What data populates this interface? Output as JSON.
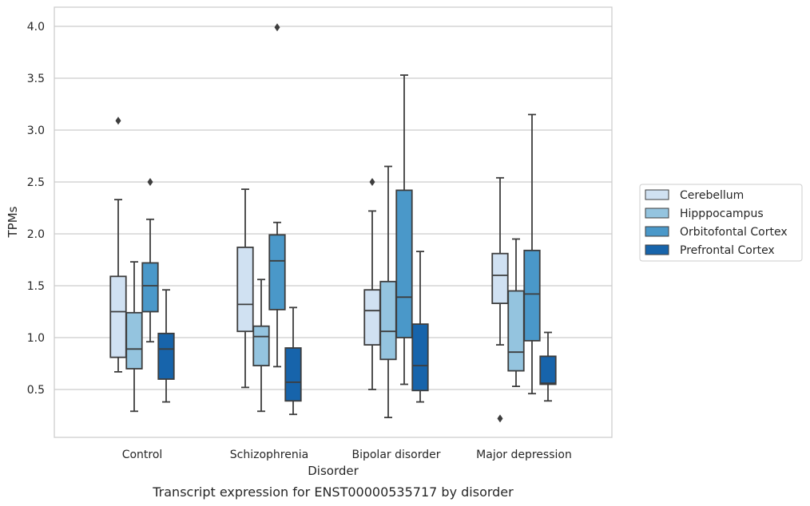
{
  "chart_data": {
    "type": "box",
    "caption": "Transcript expression for ENST00000535717 by disorder",
    "xlabel": "Disorder",
    "ylabel": "TPMs",
    "ylim": [
      0.03,
      4.2
    ],
    "yticks": [
      "0.5",
      "1.0",
      "1.5",
      "2.0",
      "2.5",
      "3.0",
      "3.5",
      "4.0"
    ],
    "grid": "horizontal",
    "legend_position": "right",
    "categories": [
      "Control",
      "Schizophrenia",
      "Bipolar disorder",
      "Major depression"
    ],
    "series": [
      {
        "name": "Cerebellum",
        "color": "#d0e1f2",
        "boxes": [
          {
            "whisker_low": 0.67,
            "q1": 0.81,
            "median": 1.25,
            "q3": 1.59,
            "whisker_high": 2.33,
            "outliers": [
              3.09
            ]
          },
          {
            "whisker_low": 0.52,
            "q1": 1.06,
            "median": 1.32,
            "q3": 1.87,
            "whisker_high": 2.43,
            "outliers": []
          },
          {
            "whisker_low": 0.5,
            "q1": 0.93,
            "median": 1.26,
            "q3": 1.46,
            "whisker_high": 2.22,
            "outliers": [
              2.5
            ]
          },
          {
            "whisker_low": 0.93,
            "q1": 1.33,
            "median": 1.6,
            "q3": 1.81,
            "whisker_high": 2.54,
            "outliers": [
              0.22
            ]
          }
        ]
      },
      {
        "name": "Hipppocampus",
        "color": "#94c4df",
        "boxes": [
          {
            "whisker_low": 0.29,
            "q1": 0.7,
            "median": 0.89,
            "q3": 1.24,
            "whisker_high": 1.73,
            "outliers": []
          },
          {
            "whisker_low": 0.29,
            "q1": 0.73,
            "median": 1.01,
            "q3": 1.11,
            "whisker_high": 1.56,
            "outliers": []
          },
          {
            "whisker_low": 0.23,
            "q1": 0.79,
            "median": 1.06,
            "q3": 1.54,
            "whisker_high": 2.65,
            "outliers": []
          },
          {
            "whisker_low": 0.53,
            "q1": 0.68,
            "median": 0.86,
            "q3": 1.45,
            "whisker_high": 1.95,
            "outliers": []
          }
        ]
      },
      {
        "name": "Orbitofontal Cortex",
        "color": "#4a98c9",
        "boxes": [
          {
            "whisker_low": 0.96,
            "q1": 1.25,
            "median": 1.5,
            "q3": 1.72,
            "whisker_high": 2.14,
            "outliers": [
              2.5
            ]
          },
          {
            "whisker_low": 0.72,
            "q1": 1.27,
            "median": 1.74,
            "q3": 1.99,
            "whisker_high": 2.11,
            "outliers": [
              3.99
            ]
          },
          {
            "whisker_low": 0.55,
            "q1": 1.0,
            "median": 1.39,
            "q3": 2.42,
            "whisker_high": 3.53,
            "outliers": []
          },
          {
            "whisker_low": 0.46,
            "q1": 0.97,
            "median": 1.42,
            "q3": 1.84,
            "whisker_high": 3.15,
            "outliers": []
          }
        ]
      },
      {
        "name": "Prefrontal Cortex",
        "color": "#1764ab",
        "boxes": [
          {
            "whisker_low": 0.38,
            "q1": 0.6,
            "median": 0.89,
            "q3": 1.04,
            "whisker_high": 1.46,
            "outliers": []
          },
          {
            "whisker_low": 0.26,
            "q1": 0.39,
            "median": 0.57,
            "q3": 0.9,
            "whisker_high": 1.29,
            "outliers": []
          },
          {
            "whisker_low": 0.38,
            "q1": 0.49,
            "median": 0.73,
            "q3": 1.13,
            "whisker_high": 1.83,
            "outliers": []
          },
          {
            "whisker_low": 0.39,
            "q1": 0.55,
            "median": 0.56,
            "q3": 0.82,
            "whisker_high": 1.05,
            "outliers": []
          }
        ]
      }
    ]
  }
}
